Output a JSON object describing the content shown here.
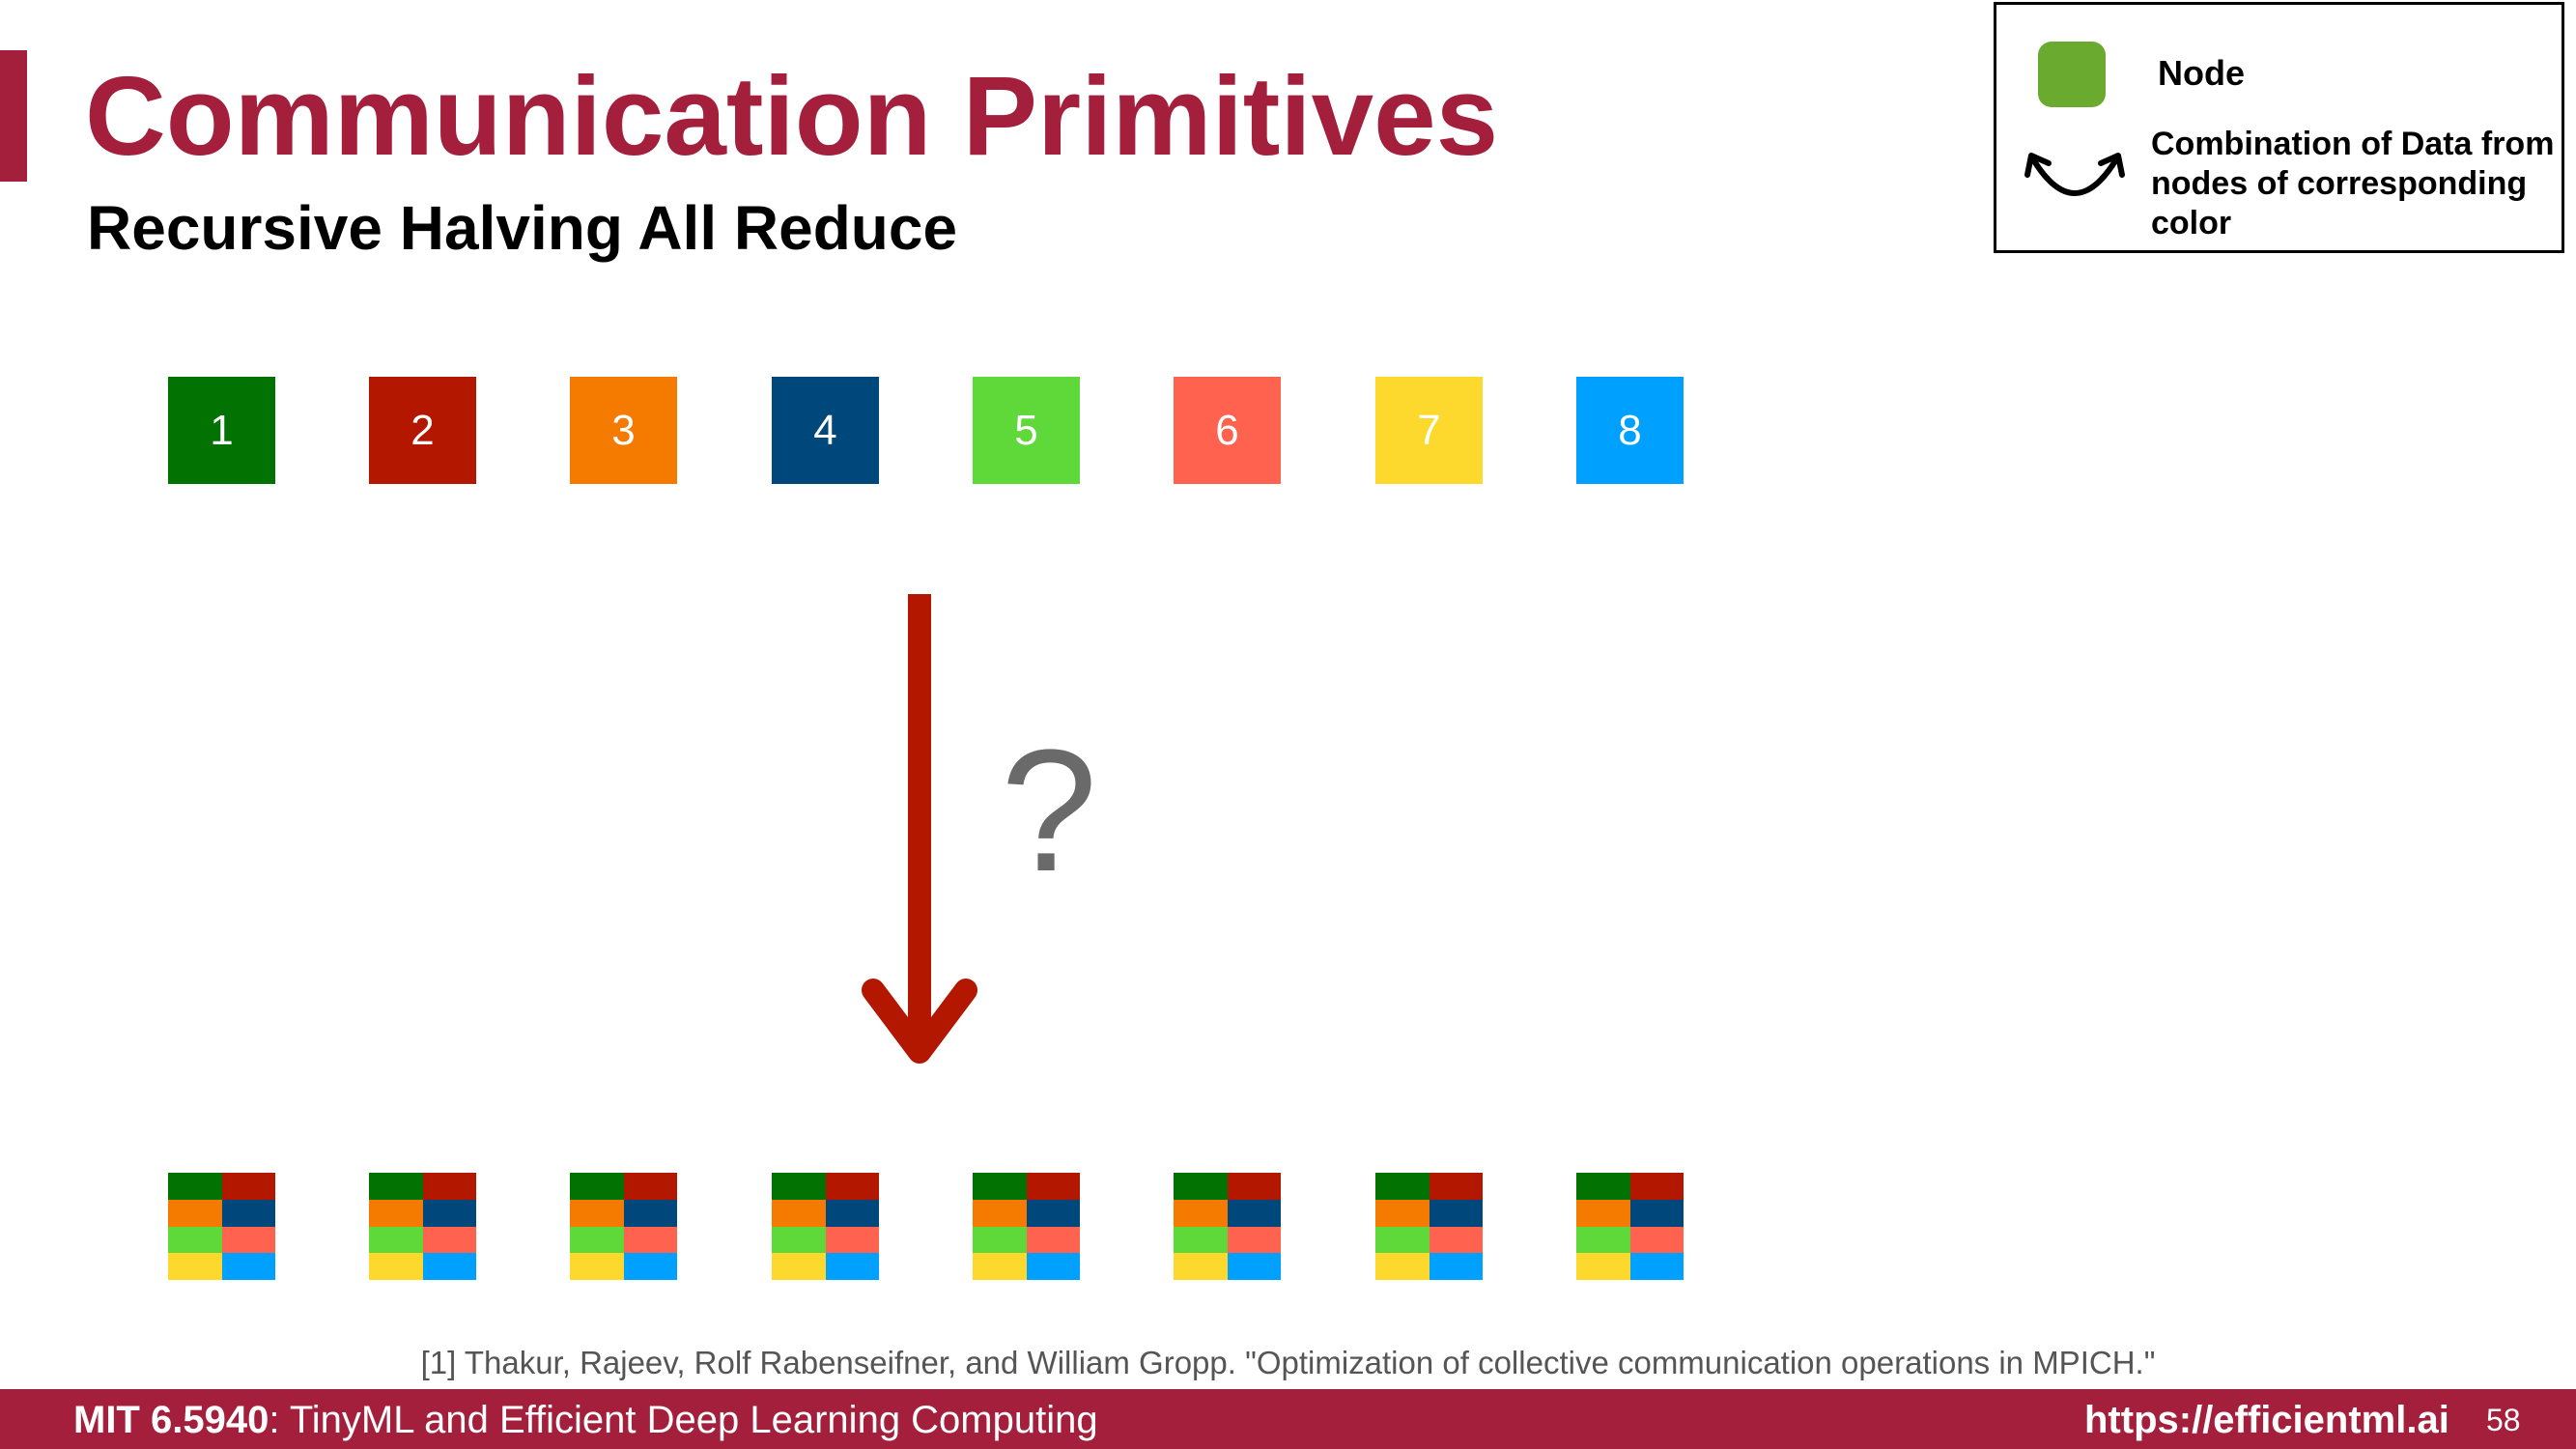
{
  "title": "Communication Primitives",
  "subtitle": "Recursive Halving All Reduce",
  "legend": {
    "node_label": "Node",
    "combination_label": "Combination of Data from nodes of corresponding color",
    "node_swatch_color": "#6aaa2e"
  },
  "nodes": [
    {
      "label": "1",
      "color": "#027302"
    },
    {
      "label": "2",
      "color": "#b31700"
    },
    {
      "label": "3",
      "color": "#f47a00"
    },
    {
      "label": "4",
      "color": "#00487b"
    },
    {
      "label": "5",
      "color": "#5fd93a"
    },
    {
      "label": "6",
      "color": "#ff634f"
    },
    {
      "label": "7",
      "color": "#fed92d"
    },
    {
      "label": "8",
      "color": "#00a1fe"
    }
  ],
  "question_mark": "?",
  "arrow_color": "#b31700",
  "citation": "[1] Thakur, Rajeev, Rolf Rabenseifner, and William Gropp. \"Optimization of collective communication operations in MPICH.\"",
  "footer": {
    "course_code": "MIT 6.5940",
    "course_name": ": TinyML and Efficient Deep Learning Computing",
    "url": "https://efficientml.ai",
    "page_number": "58"
  }
}
